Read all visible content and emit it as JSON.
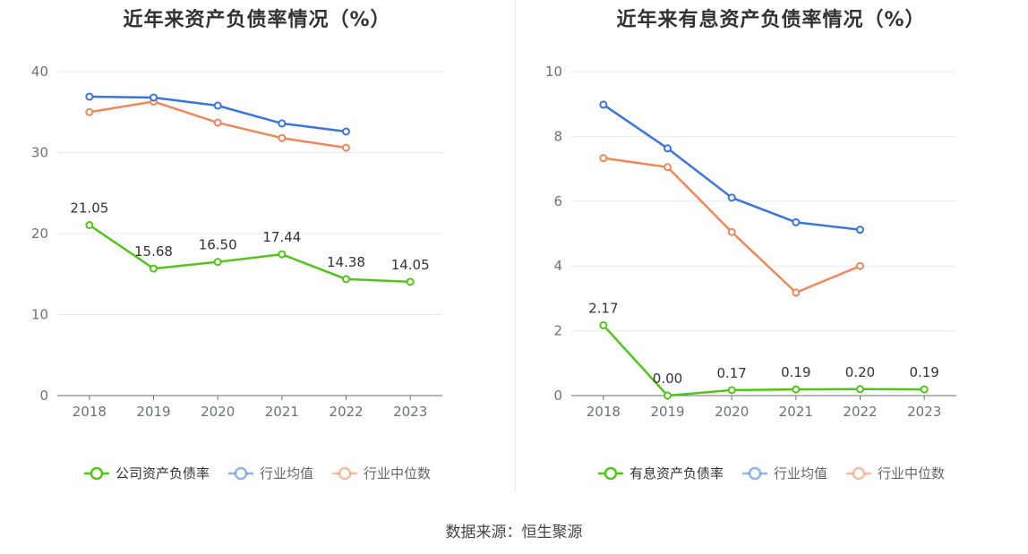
{
  "source": "数据来源：恒生聚源",
  "chart_data": [
    {
      "type": "line",
      "title": "近年来资产负债率情况（%）",
      "categories": [
        "2018",
        "2019",
        "2020",
        "2021",
        "2022",
        "2023"
      ],
      "ylim": [
        0,
        40
      ],
      "yticks": [
        0,
        10,
        20,
        30,
        40
      ],
      "grid": true,
      "legend_position": "bottom",
      "series": [
        {
          "name": "公司资产负债率",
          "color": "#52c41a",
          "values": [
            21.05,
            15.68,
            16.5,
            17.44,
            14.38,
            14.05
          ],
          "labels": [
            "21.05",
            "15.68",
            "16.50",
            "17.44",
            "14.38",
            "14.05"
          ]
        },
        {
          "name": "行业均值",
          "color": "#3a75db",
          "values": [
            36.9,
            36.8,
            35.8,
            33.6,
            32.6,
            null
          ]
        },
        {
          "name": "行业中位数",
          "color": "#f0875a",
          "values": [
            35.0,
            36.3,
            33.7,
            31.8,
            30.6,
            null
          ]
        }
      ]
    },
    {
      "type": "line",
      "title": "近年来有息资产负债率情况（%）",
      "categories": [
        "2018",
        "2019",
        "2020",
        "2021",
        "2022",
        "2023"
      ],
      "ylim": [
        0,
        10
      ],
      "yticks": [
        0,
        2,
        4,
        6,
        8,
        10
      ],
      "grid": true,
      "legend_position": "bottom",
      "series": [
        {
          "name": "有息资产负债率",
          "color": "#52c41a",
          "values": [
            2.17,
            0.0,
            0.17,
            0.19,
            0.2,
            0.19
          ],
          "labels": [
            "2.17",
            "0.00",
            "0.17",
            "0.19",
            "0.20",
            "0.19"
          ]
        },
        {
          "name": "行业均值",
          "color": "#3a75db",
          "values": [
            8.98,
            7.63,
            6.11,
            5.35,
            5.12,
            null
          ]
        },
        {
          "name": "行业中位数",
          "color": "#f0875a",
          "values": [
            7.33,
            7.05,
            5.05,
            3.18,
            4.0,
            null
          ]
        }
      ]
    }
  ]
}
